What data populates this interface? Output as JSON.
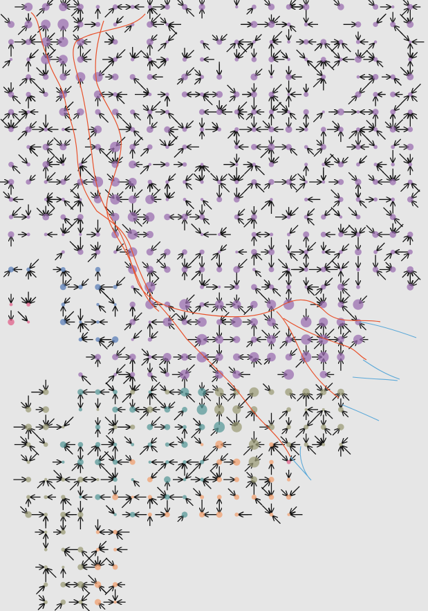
{
  "figure": {
    "background": "#e6e6e6",
    "grid": {
      "cols": 24,
      "rows": 35
    },
    "colors": {
      "purple": "#9b6fb0",
      "blue": "#5b7fb8",
      "teal": "#5a9a9a",
      "olive": "#9c9c78",
      "orange": "#f0a070",
      "pink": "#e0608a",
      "flow_red": "#e8502a",
      "flow_blue": "#5aa8d8",
      "arrow": "#111111"
    }
  },
  "clusters": [
    {
      "name": "upper-purple",
      "color": "purple",
      "rows": [
        0,
        21
      ],
      "cols": [
        0,
        23
      ]
    },
    {
      "name": "left-blue",
      "color": "blue",
      "rows": [
        15,
        19
      ],
      "cols": [
        0,
        6
      ]
    },
    {
      "name": "pink",
      "color": "pink",
      "rows": [
        16,
        18
      ],
      "cols": [
        0,
        1
      ]
    },
    {
      "name": "lower-teal",
      "color": "teal",
      "rows": [
        22,
        29
      ],
      "cols": [
        3,
        13
      ]
    },
    {
      "name": "lower-olive",
      "color": "olive",
      "rows": [
        22,
        34
      ],
      "cols": [
        2,
        19
      ]
    },
    {
      "name": "orange",
      "color": "orange",
      "rows": [
        25,
        30
      ],
      "cols": [
        5,
        16
      ]
    }
  ]
}
